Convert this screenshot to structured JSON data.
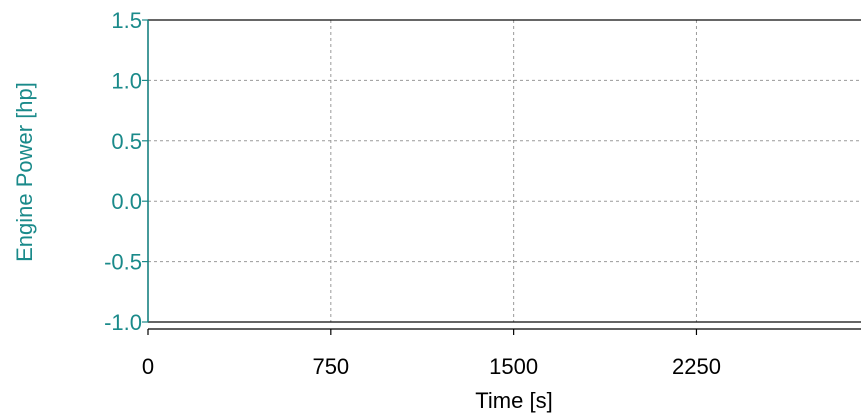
{
  "colors": {
    "y_axis": "#1a8a8a",
    "x_axis": "#000000",
    "grid": "#9a9a9a",
    "background": "#ffffff"
  },
  "chart_data": {
    "type": "line",
    "title": "",
    "xlabel": "Time [s]",
    "ylabel": "Engine Power [hp]",
    "xlim": [
      0,
      2925
    ],
    "ylim": [
      -1.0,
      1.5
    ],
    "x_ticks": [
      0,
      750,
      1500,
      2250
    ],
    "x_tick_labels": [
      "0",
      "750",
      "1500",
      "2250"
    ],
    "y_ticks": [
      -1.0,
      -0.5,
      0.0,
      0.5,
      1.0,
      1.5
    ],
    "y_tick_labels": [
      "-1.0",
      "-0.5",
      "0.0",
      "0.5",
      "1.0",
      "1.5"
    ],
    "grid": true,
    "grid_style": "dashed",
    "series": []
  }
}
